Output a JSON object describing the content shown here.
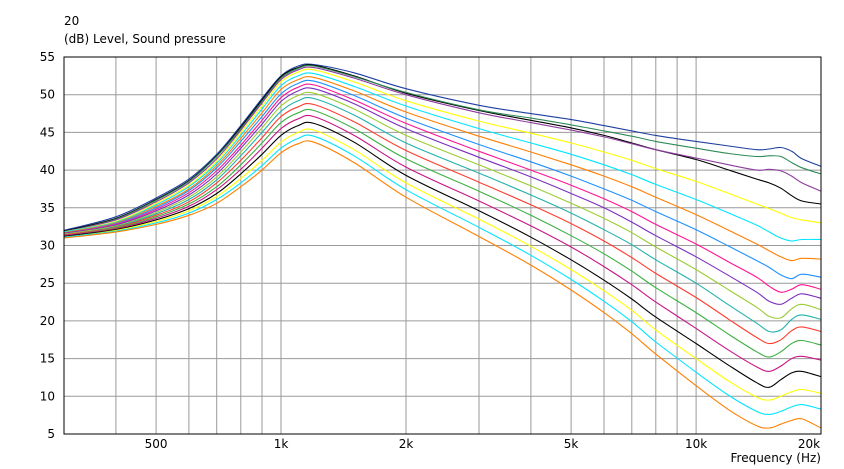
{
  "chart_data": {
    "type": "line",
    "title": "20",
    "ylabel": "(dB)  Level, Sound pressure",
    "xlabel": "Frequency  (Hz)",
    "x_scale": "log",
    "xlim": [
      300,
      20000
    ],
    "ylim": [
      5,
      55
    ],
    "grid": true,
    "x_ticks": [
      {
        "value": 500,
        "label": "500"
      },
      {
        "value": 1000,
        "label": "1k"
      },
      {
        "value": 2000,
        "label": "2k"
      },
      {
        "value": 5000,
        "label": "5k"
      },
      {
        "value": 10000,
        "label": "10k"
      },
      {
        "value": 20000,
        "label": "20k"
      }
    ],
    "y_ticks": [
      {
        "value": 5,
        "label": "5"
      },
      {
        "value": 10,
        "label": "10"
      },
      {
        "value": 15,
        "label": "15"
      },
      {
        "value": 20,
        "label": "20"
      },
      {
        "value": 25,
        "label": "25"
      },
      {
        "value": 30,
        "label": "30"
      },
      {
        "value": 35,
        "label": "35"
      },
      {
        "value": 40,
        "label": "40"
      },
      {
        "value": 45,
        "label": "45"
      },
      {
        "value": 50,
        "label": "50"
      },
      {
        "value": 55,
        "label": "55"
      }
    ],
    "x": [
      300,
      400,
      500,
      600,
      700,
      800,
      900,
      1000,
      1100,
      1200,
      1500,
      2000,
      3000,
      4000,
      5000,
      6000,
      7000,
      8000,
      10000,
      12000,
      14000,
      15000,
      16000,
      17000,
      18000,
      20000
    ],
    "series": [
      {
        "color": "#1f3fa0",
        "values": [
          32.0,
          33.8,
          36.3,
          38.8,
          42.1,
          45.9,
          49.5,
          52.5,
          53.8,
          54.0,
          52.9,
          50.8,
          48.6,
          47.5,
          46.7,
          45.9,
          45.2,
          44.6,
          43.8,
          43.2,
          42.7,
          42.8,
          43.0,
          42.5,
          41.5,
          40.5
        ]
      },
      {
        "color": "#000000",
        "values": [
          31.9,
          33.6,
          36.1,
          38.6,
          41.9,
          45.7,
          49.3,
          52.4,
          53.6,
          53.9,
          52.5,
          50.2,
          47.9,
          46.6,
          45.6,
          44.6,
          43.6,
          42.7,
          41.4,
          40.0,
          38.8,
          38.3,
          37.6,
          36.6,
          35.9,
          35.5
        ]
      },
      {
        "color": "#2e8b57",
        "values": [
          31.8,
          33.5,
          36.0,
          38.5,
          41.8,
          45.5,
          49.1,
          52.2,
          53.5,
          53.8,
          52.4,
          50.3,
          48.0,
          46.9,
          46.0,
          45.2,
          44.5,
          43.8,
          42.9,
          42.2,
          41.8,
          41.9,
          41.8,
          41.0,
          40.3,
          39.5
        ]
      },
      {
        "color": "#8e3c9e",
        "values": [
          31.8,
          33.4,
          35.8,
          38.3,
          41.5,
          45.3,
          48.9,
          52.0,
          53.3,
          53.6,
          52.2,
          50.0,
          47.6,
          46.3,
          45.3,
          44.4,
          43.5,
          42.7,
          41.6,
          40.7,
          40.0,
          40.1,
          39.9,
          39.2,
          38.3,
          37.2
        ]
      },
      {
        "color": "#ffff00",
        "values": [
          31.8,
          33.2,
          35.6,
          38.0,
          41.2,
          45.0,
          48.5,
          51.7,
          53.0,
          53.3,
          51.7,
          49.2,
          46.5,
          44.9,
          43.6,
          42.4,
          41.3,
          40.2,
          38.5,
          36.9,
          35.5,
          34.9,
          34.3,
          33.7,
          33.4,
          33.0
        ]
      },
      {
        "color": "#00e5ff",
        "values": [
          31.8,
          33.1,
          35.4,
          37.8,
          40.9,
          44.6,
          48.1,
          51.2,
          52.5,
          52.8,
          51.1,
          48.5,
          45.5,
          43.6,
          42.1,
          40.7,
          39.4,
          38.1,
          36.1,
          34.3,
          32.7,
          31.8,
          31.0,
          30.6,
          30.8,
          30.8
        ]
      },
      {
        "color": "#ff7f00",
        "values": [
          31.7,
          33.0,
          35.2,
          37.5,
          40.6,
          44.2,
          47.6,
          50.7,
          52.0,
          52.3,
          50.5,
          47.7,
          44.5,
          42.4,
          40.7,
          39.2,
          37.8,
          36.4,
          34.1,
          32.0,
          30.2,
          29.3,
          28.5,
          28.0,
          28.3,
          28.2
        ]
      },
      {
        "color": "#1e90ff",
        "values": [
          31.6,
          32.9,
          35.0,
          37.3,
          40.3,
          43.8,
          47.1,
          50.1,
          51.5,
          51.8,
          49.9,
          46.9,
          43.4,
          41.1,
          39.2,
          37.5,
          36.0,
          34.5,
          32.1,
          29.9,
          28.0,
          27.1,
          26.1,
          25.6,
          26.2,
          25.8
        ]
      },
      {
        "color": "#ff1493",
        "values": [
          31.6,
          32.8,
          34.8,
          37.0,
          39.9,
          43.3,
          46.6,
          49.6,
          51.0,
          51.3,
          49.3,
          46.2,
          42.5,
          40.0,
          38.0,
          36.2,
          34.5,
          32.8,
          30.2,
          27.8,
          25.8,
          24.6,
          23.8,
          24.2,
          24.8,
          24.2
        ]
      },
      {
        "color": "#7b2dbd",
        "values": [
          31.6,
          32.7,
          34.6,
          36.7,
          39.5,
          42.9,
          46.1,
          49.1,
          50.5,
          50.8,
          48.8,
          45.5,
          41.7,
          39.1,
          36.9,
          35.0,
          33.1,
          31.3,
          28.5,
          26.0,
          23.8,
          22.6,
          22.2,
          23.0,
          23.6,
          23.0
        ]
      },
      {
        "color": "#9acd32",
        "values": [
          31.5,
          32.6,
          34.4,
          36.4,
          39.1,
          42.4,
          45.6,
          48.5,
          49.9,
          50.2,
          48.1,
          44.6,
          40.7,
          37.9,
          35.6,
          33.6,
          31.7,
          29.8,
          26.8,
          24.1,
          21.8,
          20.6,
          20.4,
          21.6,
          22.2,
          21.5
        ]
      },
      {
        "color": "#20b2aa",
        "values": [
          31.4,
          32.5,
          34.2,
          36.1,
          38.7,
          41.9,
          45.0,
          47.8,
          49.2,
          49.5,
          47.3,
          43.6,
          39.6,
          36.7,
          34.3,
          32.1,
          30.1,
          28.1,
          25.0,
          22.1,
          19.7,
          18.6,
          18.8,
          20.2,
          20.8,
          20.2
        ]
      },
      {
        "color": "#ff3b2f",
        "values": [
          31.4,
          32.4,
          34.0,
          35.8,
          38.3,
          41.3,
          44.3,
          47.1,
          48.4,
          48.7,
          46.4,
          42.6,
          38.4,
          35.4,
          32.9,
          30.6,
          28.4,
          26.3,
          23.1,
          20.2,
          17.8,
          17.0,
          17.5,
          18.7,
          19.2,
          18.6
        ]
      },
      {
        "color": "#3cb043",
        "values": [
          31.3,
          32.3,
          33.8,
          35.5,
          37.8,
          40.7,
          43.6,
          46.3,
          47.6,
          47.9,
          45.5,
          41.5,
          37.2,
          34.0,
          31.3,
          28.9,
          26.6,
          24.4,
          21.1,
          18.2,
          15.9,
          15.2,
          15.9,
          17.0,
          17.4,
          16.8
        ]
      },
      {
        "color": "#c71585",
        "values": [
          31.3,
          32.2,
          33.6,
          35.2,
          37.4,
          40.1,
          42.9,
          45.5,
          46.8,
          47.1,
          44.6,
          40.4,
          35.9,
          32.6,
          29.8,
          27.2,
          24.8,
          22.5,
          19.0,
          16.1,
          13.9,
          13.3,
          14.0,
          15.0,
          15.3,
          14.8
        ]
      },
      {
        "color": "#000000",
        "values": [
          31.2,
          32.1,
          33.4,
          34.9,
          36.9,
          39.5,
          42.1,
          44.6,
          45.9,
          46.2,
          43.7,
          39.3,
          34.6,
          31.1,
          28.1,
          25.4,
          22.9,
          20.5,
          17.0,
          14.1,
          11.8,
          11.2,
          12.2,
          13.1,
          13.3,
          12.6
        ]
      },
      {
        "color": "#ffff00",
        "values": [
          31.1,
          32.0,
          33.2,
          34.6,
          36.5,
          38.9,
          41.3,
          43.7,
          45.0,
          45.3,
          42.7,
          38.3,
          33.5,
          29.9,
          26.8,
          24.0,
          21.4,
          18.8,
          15.0,
          12.0,
          9.9,
          9.5,
          10.0,
          10.6,
          10.9,
          10.4
        ]
      },
      {
        "color": "#00e5ff",
        "values": [
          31.1,
          31.9,
          33.0,
          34.3,
          36.1,
          38.3,
          40.6,
          42.9,
          44.2,
          44.5,
          41.9,
          37.4,
          32.4,
          28.7,
          25.5,
          22.6,
          19.9,
          17.2,
          13.2,
          10.1,
          8.0,
          7.6,
          8.0,
          8.6,
          8.9,
          8.3
        ]
      },
      {
        "color": "#ff7f00",
        "values": [
          31.0,
          31.8,
          32.8,
          34.0,
          35.6,
          37.8,
          40.0,
          42.3,
          43.5,
          43.7,
          41.0,
          36.4,
          31.2,
          27.4,
          24.1,
          21.1,
          18.3,
          15.6,
          11.4,
          8.2,
          6.1,
          5.8,
          6.3,
          6.8,
          7.0,
          5.8
        ]
      }
    ]
  }
}
